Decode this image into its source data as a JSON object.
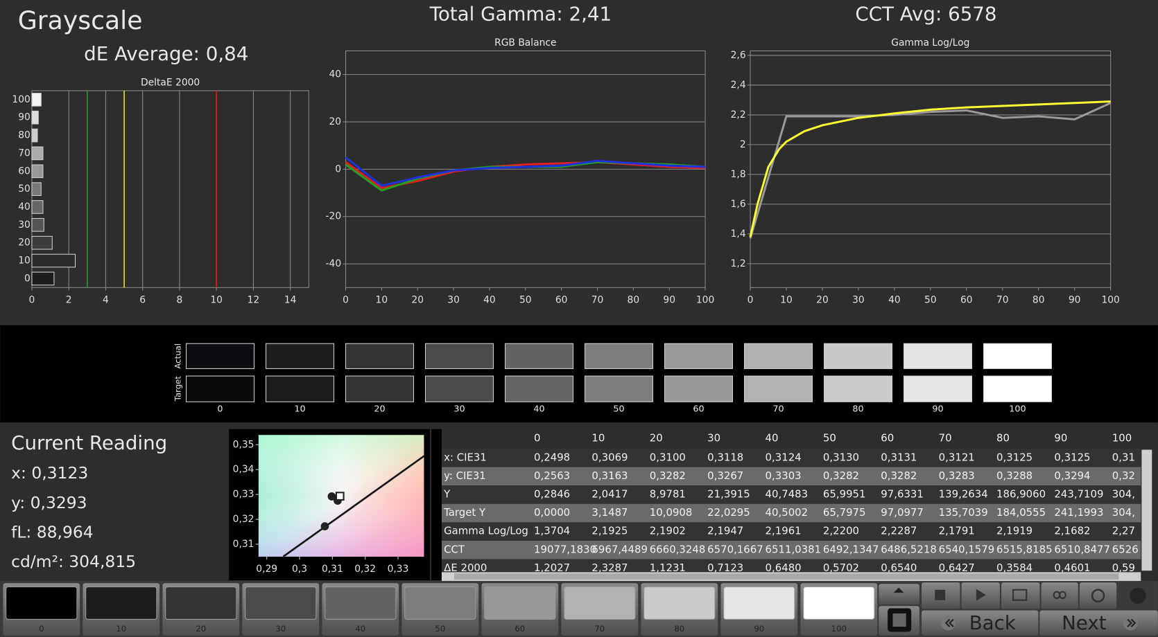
{
  "header": {
    "title": "Grayscale",
    "de_average": "dE Average: 0,84",
    "total_gamma": "Total Gamma: 2,41",
    "cct_avg": "CCT Avg: 6578"
  },
  "chart_data": [
    {
      "type": "bar",
      "orientation": "horizontal",
      "title": "DeltaE 2000",
      "categories": [
        "0",
        "10",
        "20",
        "30",
        "40",
        "50",
        "60",
        "70",
        "80",
        "90",
        "100"
      ],
      "values": [
        1.2,
        2.35,
        1.1,
        0.65,
        0.6,
        0.5,
        0.6,
        0.6,
        0.3,
        0.35,
        0.5
      ],
      "colors": [
        "#1c1c1c",
        "#2c2c2c",
        "#3c3c3c",
        "#555555",
        "#666666",
        "#777777",
        "#999999",
        "#aaaaaa",
        "#cccccc",
        "#dddddd",
        "#f2f2f2"
      ],
      "xlim": [
        0,
        15
      ],
      "xticks": [
        0,
        2,
        4,
        6,
        8,
        10,
        12,
        14
      ],
      "grid": true,
      "reference_lines": [
        {
          "value": 3,
          "color": "#2e9a2e"
        },
        {
          "value": 5,
          "color": "#e6e62a"
        },
        {
          "value": 10,
          "color": "#d42020"
        }
      ]
    },
    {
      "type": "line",
      "title": "RGB Balance",
      "x": [
        0,
        10,
        20,
        30,
        40,
        50,
        60,
        70,
        80,
        90,
        100
      ],
      "series": [
        {
          "color": "#e02020",
          "values": [
            3,
            -8,
            -5,
            -1,
            1,
            2,
            2.5,
            3,
            2,
            1,
            0.5
          ]
        },
        {
          "color": "#20a020",
          "values": [
            2,
            -9,
            -4,
            -0.5,
            1,
            1,
            1,
            3,
            2.5,
            2,
            1
          ]
        },
        {
          "color": "#2030e0",
          "values": [
            5,
            -7,
            -3.5,
            -0.5,
            0.5,
            1,
            1.5,
            3.5,
            2.5,
            1.5,
            1
          ]
        }
      ],
      "xlim": [
        0,
        100
      ],
      "xticks": [
        0,
        10,
        20,
        30,
        40,
        50,
        60,
        70,
        80,
        90,
        100
      ],
      "ylim": [
        -50,
        50
      ],
      "yticks": [
        -40,
        -20,
        0,
        20,
        40
      ],
      "grid": true
    },
    {
      "type": "line",
      "title": "Gamma Log/Log",
      "series": [
        {
          "color": "#9a9a9a",
          "x": [
            0,
            10,
            20,
            30,
            40,
            50,
            60,
            70,
            80,
            90,
            100
          ],
          "values": [
            1.37,
            2.19,
            2.19,
            2.19,
            2.2,
            2.22,
            2.23,
            2.18,
            2.19,
            2.17,
            2.28
          ]
        },
        {
          "color": "#ffff33",
          "x": [
            0,
            2,
            5,
            8,
            10,
            15,
            20,
            30,
            40,
            50,
            60,
            70,
            80,
            90,
            100
          ],
          "values": [
            1.38,
            1.6,
            1.85,
            1.97,
            2.02,
            2.09,
            2.13,
            2.18,
            2.21,
            2.235,
            2.25,
            2.26,
            2.27,
            2.28,
            2.29
          ]
        }
      ],
      "xlim": [
        0,
        100
      ],
      "xticks": [
        0,
        10,
        20,
        30,
        40,
        50,
        60,
        70,
        80,
        90,
        100
      ],
      "ylim": [
        1.04,
        2.63
      ],
      "yticks": [
        {
          "value": 1.2,
          "label": "1,2"
        },
        {
          "value": 1.4,
          "label": "1,4"
        },
        {
          "value": 1.6,
          "label": "1,6"
        },
        {
          "value": 1.8,
          "label": "1,8"
        },
        2,
        {
          "value": 2.2,
          "label": "2,2"
        },
        {
          "value": 2.4,
          "label": "2,4"
        },
        {
          "value": 2.6,
          "label": "2,6"
        }
      ],
      "grid": true
    },
    {
      "type": "scatter",
      "series": [
        {
          "kind": "line",
          "color": "#111111",
          "x": [
            0.295,
            0.338
          ],
          "values": [
            0.305,
            0.3455
          ]
        },
        {
          "kind": "points",
          "color": "#222222",
          "x": [
            0.3098,
            0.3116,
            0.3077,
            0.3123
          ],
          "values": [
            0.3292,
            0.3275,
            0.3172,
            0.3293
          ]
        }
      ],
      "xlim": [
        0.2875,
        0.3379
      ],
      "xticks": [
        {
          "value": 0.29,
          "label": "0,29"
        },
        {
          "value": 0.3,
          "label": "0,3"
        },
        {
          "value": 0.31,
          "label": "0,31"
        },
        {
          "value": 0.32,
          "label": "0,32"
        },
        {
          "value": 0.33,
          "label": "0,33"
        }
      ],
      "ylim": [
        0.305,
        0.3539
      ],
      "yticks": [
        {
          "value": 0.31,
          "label": "0,31"
        },
        {
          "value": 0.32,
          "label": "0,32"
        },
        {
          "value": 0.33,
          "label": "0,33"
        },
        {
          "value": 0.34,
          "label": "0,34"
        },
        {
          "value": 0.35,
          "label": "0,35"
        }
      ],
      "grid": false
    }
  ],
  "swatches": {
    "row_labels": [
      "Actual",
      "Target"
    ],
    "labels": [
      "0",
      "10",
      "20",
      "30",
      "40",
      "50",
      "60",
      "70",
      "80",
      "90",
      "100"
    ],
    "actual_colors": [
      "#0b0d10",
      "#1d1d1e",
      "#333333",
      "#4a4a4a",
      "#636363",
      "#7d7d7d",
      "#999999",
      "#b1b1b1",
      "#c9c9c9",
      "#e3e3e3",
      "#ffffff"
    ],
    "target_colors": [
      "#0a0a0a",
      "#1c1c1c",
      "#343434",
      "#4b4b4b",
      "#646464",
      "#7e7e7e",
      "#989898",
      "#b2b2b2",
      "#cbcbcb",
      "#e5e5e5",
      "#ffffff"
    ]
  },
  "reading": {
    "title": "Current Reading",
    "lines": [
      "x: 0,3123",
      "y: 0,3293",
      "fL: 88,964",
      "cd/m²: 304,815"
    ]
  },
  "table": {
    "columns": [
      "0",
      "10",
      "20",
      "30",
      "40",
      "50",
      "60",
      "70",
      "80",
      "90",
      "100"
    ],
    "rows": [
      {
        "label": "x: CIE31",
        "cells": [
          "0,2498",
          "0,3069",
          "0,3100",
          "0,3118",
          "0,3124",
          "0,3130",
          "0,3131",
          "0,3121",
          "0,3125",
          "0,3125",
          "0,31"
        ]
      },
      {
        "label": "y: CIE31",
        "cells": [
          "0,2563",
          "0,3163",
          "0,3282",
          "0,3267",
          "0,3303",
          "0,3282",
          "0,3282",
          "0,3283",
          "0,3288",
          "0,3294",
          "0,32"
        ]
      },
      {
        "label": "Y",
        "cells": [
          "0,2846",
          "2,0417",
          "8,9781",
          "21,3915",
          "40,7483",
          "65,9951",
          "97,6331",
          "139,2634",
          "186,9060",
          "243,7109",
          "304,"
        ]
      },
      {
        "label": "Target Y",
        "cells": [
          "0,0000",
          "3,1487",
          "10,0908",
          "22,0295",
          "40,5002",
          "65,7975",
          "97,0977",
          "135,7039",
          "184,0555",
          "241,1993",
          "304,"
        ]
      },
      {
        "label": "Gamma Log/Log",
        "cells": [
          "1,3704",
          "2,1925",
          "2,1902",
          "2,1947",
          "2,1961",
          "2,2200",
          "2,2287",
          "2,1791",
          "2,1919",
          "2,1682",
          "2,27"
        ]
      },
      {
        "label": "CCT",
        "cells": [
          "19077,1830",
          "6967,4489",
          "6660,3248",
          "6570,1667",
          "6511,0381",
          "6492,1347",
          "6486,5218",
          "6540,1579",
          "6515,8185",
          "6510,8477",
          "6526"
        ]
      },
      {
        "label": "ΔE 2000",
        "cells": [
          "1,2027",
          "2,3287",
          "1,1231",
          "0,7123",
          "0,6480",
          "0,5702",
          "0,6540",
          "0,6427",
          "0,3584",
          "0,4601",
          "0,59"
        ]
      }
    ]
  },
  "patch_buttons": {
    "labels": [
      "0",
      "10",
      "20",
      "30",
      "40",
      "50",
      "60",
      "70",
      "80",
      "90",
      "100"
    ],
    "colors": [
      "#000000",
      "#1c1c1c",
      "#333333",
      "#4a4a4a",
      "#636363",
      "#7d7d7d",
      "#989898",
      "#b2b2b2",
      "#cbcbcb",
      "#e5e5e5",
      "#ffffff"
    ]
  },
  "buttons": {
    "back": "Back",
    "next": "Next"
  }
}
